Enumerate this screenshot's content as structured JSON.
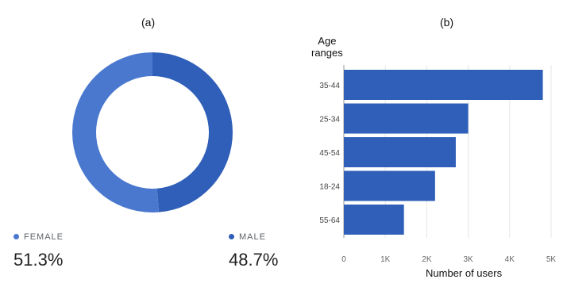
{
  "colors": {
    "male": "#2f5fb8",
    "female": "#4a78cf",
    "bar": "#2f5fb8",
    "grid": "#e6e6e6"
  },
  "panel_a": {
    "label": "(a)"
  },
  "panel_b": {
    "label": "(b)"
  },
  "chart_data": [
    {
      "type": "pie",
      "variant": "donut",
      "title": "",
      "labels": [
        "FEMALE",
        "MALE"
      ],
      "values": [
        51.3,
        48.7
      ],
      "value_labels": [
        "51.3%",
        "48.7%"
      ],
      "legend": "bottom"
    },
    {
      "type": "bar",
      "orientation": "horizontal",
      "title": "",
      "ylabel": "Age ranges",
      "xlabel": "Number of users",
      "categories": [
        "35-44",
        "25-34",
        "45-54",
        "18-24",
        "55-64"
      ],
      "values": [
        4800,
        3000,
        2700,
        2200,
        1450
      ],
      "xlim": [
        0,
        5000
      ],
      "xticks": [
        "0",
        "1K",
        "2K",
        "3K",
        "4K",
        "5K"
      ],
      "grid": true
    }
  ]
}
